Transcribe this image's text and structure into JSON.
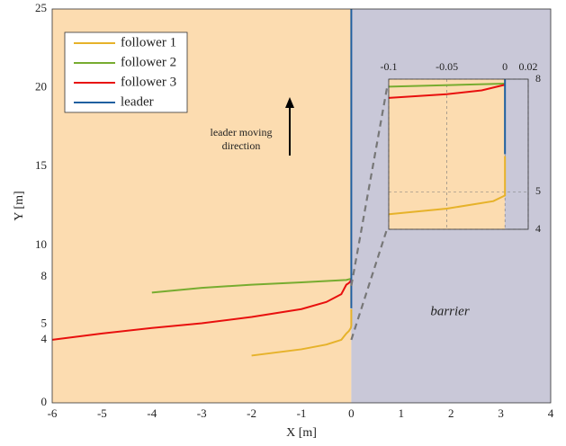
{
  "chart_data": {
    "type": "line",
    "xlabel": "X [m]",
    "ylabel": "Y [m]",
    "xlim": [
      -6,
      4
    ],
    "ylim": [
      0,
      25
    ],
    "xticks": [
      -6,
      -5,
      -4,
      -3,
      -2,
      -1,
      0,
      1,
      2,
      3,
      4
    ],
    "yticks": [
      0,
      4,
      5,
      8,
      10,
      15,
      20,
      25
    ],
    "grid": true,
    "legend": "upper left",
    "barrier_x": 0,
    "region_colors": {
      "free": "#fcdcb0",
      "barrier": "#c9c8d8"
    },
    "annotations": [
      "leader moving",
      "direction",
      "barrier"
    ],
    "series": [
      {
        "name": "follower 1",
        "color": "#e6b22a",
        "x": [
          -2,
          -1.5,
          -1,
          -0.5,
          -0.2,
          -0.1,
          -0.05,
          -0.01,
          0,
          0
        ],
        "values": [
          3.0,
          3.2,
          3.4,
          3.7,
          4.0,
          4.4,
          4.55,
          4.75,
          4.9,
          5.95
        ]
      },
      {
        "name": "follower 2",
        "color": "#77ac30",
        "x": [
          -4,
          -3,
          -2,
          -1,
          -0.1,
          0
        ],
        "values": [
          7.0,
          7.3,
          7.5,
          7.65,
          7.8,
          7.88
        ]
      },
      {
        "name": "follower 3",
        "color": "#e8100e",
        "x": [
          -6,
          -5,
          -4,
          -3,
          -2,
          -1,
          -0.5,
          -0.2,
          -0.1,
          -0.05,
          -0.02,
          0
        ],
        "values": [
          4.0,
          4.4,
          4.75,
          5.05,
          5.45,
          5.95,
          6.4,
          6.9,
          7.5,
          7.6,
          7.7,
          7.85
        ]
      },
      {
        "name": "leader",
        "color": "#1f5fa0",
        "x": [
          0,
          0
        ],
        "values": [
          6.0,
          25
        ]
      }
    ],
    "inset": {
      "xlim": [
        -0.1,
        0.02
      ],
      "ylim": [
        4,
        8
      ],
      "xticks": [
        -0.1,
        -0.05,
        0,
        0.02
      ],
      "yticks": [
        4,
        5,
        8
      ]
    }
  }
}
